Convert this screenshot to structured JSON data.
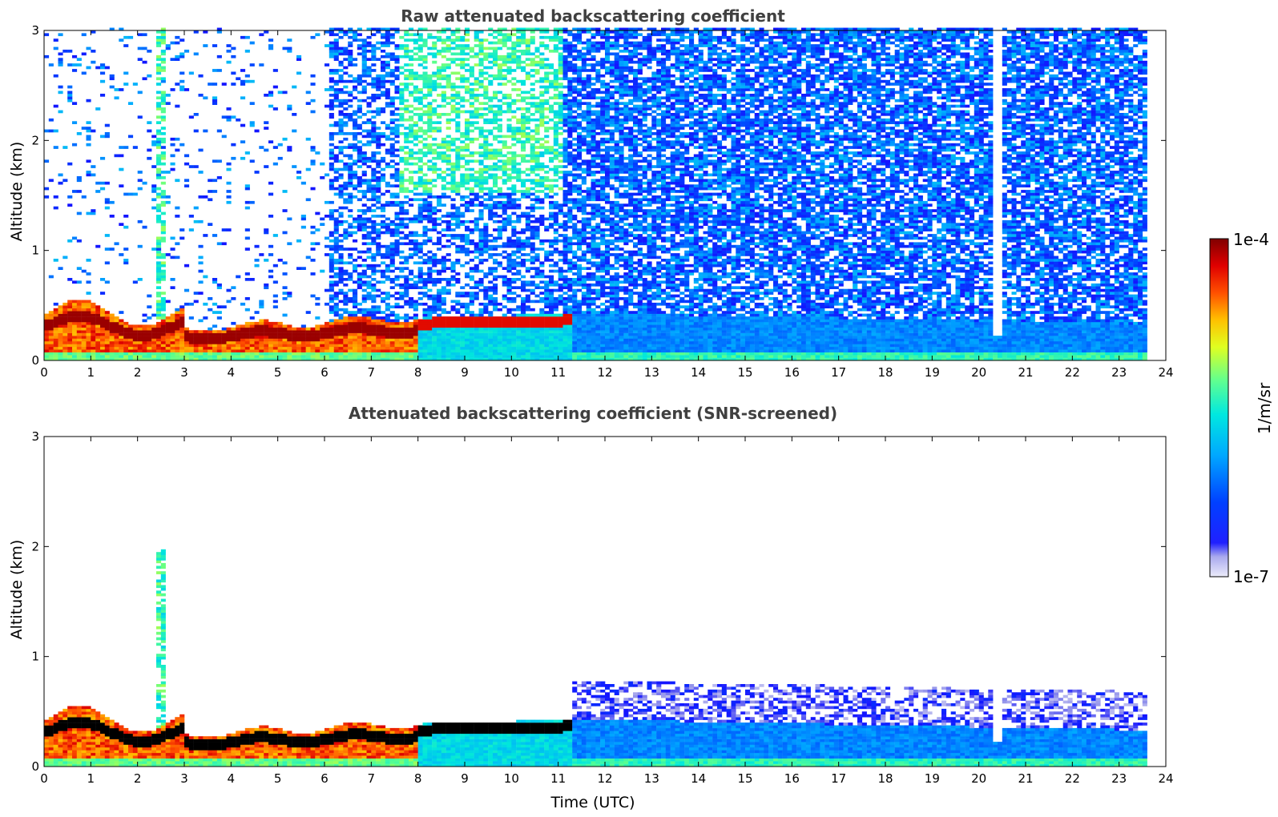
{
  "chart_data": [
    {
      "type": "heatmap",
      "title": "Raw attenuated backscattering coefficient",
      "xlabel": "",
      "ylabel": "Altitude (km)",
      "xlim": [
        0,
        24
      ],
      "ylim": [
        0,
        3
      ],
      "xticks": [
        "0",
        "1",
        "2",
        "3",
        "4",
        "5",
        "6",
        "7",
        "8",
        "9",
        "10",
        "11",
        "12",
        "13",
        "14",
        "15",
        "16",
        "17",
        "18",
        "19",
        "20",
        "21",
        "22",
        "23",
        "24"
      ],
      "yticks": [
        "0",
        "1",
        "2",
        "3"
      ],
      "data_end_time": 23.6,
      "grid": false
    },
    {
      "type": "heatmap",
      "title": "Attenuated backscattering coefficient (SNR-screened)",
      "xlabel": "Time (UTC)",
      "ylabel": "Altitude (km)",
      "xlim": [
        0,
        24
      ],
      "ylim": [
        0,
        3
      ],
      "xticks": [
        "0",
        "1",
        "2",
        "3",
        "4",
        "5",
        "6",
        "7",
        "8",
        "9",
        "10",
        "11",
        "12",
        "13",
        "14",
        "15",
        "16",
        "17",
        "18",
        "19",
        "20",
        "21",
        "22",
        "23",
        "24"
      ],
      "yticks": [
        "0",
        "1",
        "2",
        "3"
      ],
      "data_end_time": 23.6,
      "grid": false
    }
  ],
  "colorbar": {
    "label": "1/m/sr",
    "max_label": "1e-4",
    "min_label": "1e-7",
    "colormap": "jet",
    "colors": [
      "#e6e6f7",
      "#b3b3ee",
      "#7a7ae8",
      "#0000ff",
      "#0050ff",
      "#00a0ff",
      "#00e0f0",
      "#40ffc0",
      "#a0ff60",
      "#ffff00",
      "#ffc000",
      "#ff7000",
      "#ff2000",
      "#d00000",
      "#800000"
    ]
  }
}
